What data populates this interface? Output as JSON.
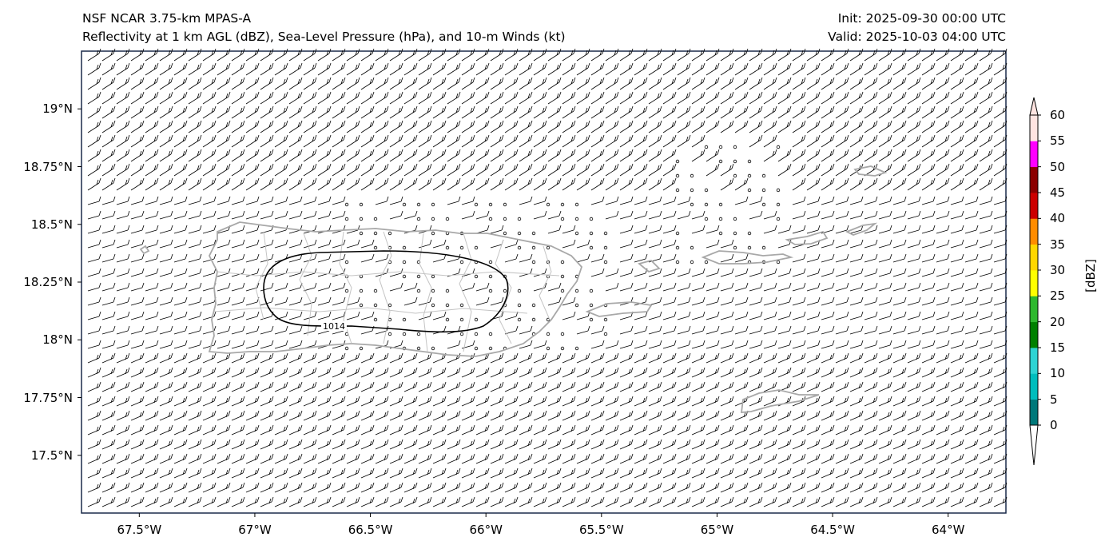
{
  "header": {
    "title_line1": "NSF NCAR 3.75-km MPAS-A",
    "title_line2": "Reflectivity at 1 km AGL (dBZ), Sea-Level Pressure (hPa), and 10-m Winds (kt)",
    "init": "Init: 2025-09-30 00:00 UTC",
    "valid": "Valid: 2025-10-03 04:00 UTC"
  },
  "map": {
    "lat_ticks": [
      "19°N",
      "18.75°N",
      "18.5°N",
      "18.25°N",
      "18°N",
      "17.75°N",
      "17.5°N"
    ],
    "lon_ticks": [
      "67.5°W",
      "67°W",
      "66.5°W",
      "66°W",
      "65.5°W",
      "65°W",
      "64.5°W",
      "64°W"
    ],
    "lat_values": [
      19.0,
      18.75,
      18.5,
      18.25,
      18.0,
      17.75,
      17.5
    ],
    "lon_values": [
      -67.5,
      -67.0,
      -66.5,
      -66.0,
      -65.5,
      -65.0,
      -64.5,
      -64.0
    ],
    "extent": {
      "lon_min": -67.75,
      "lon_max": -63.75,
      "lat_min": 17.25,
      "lat_max": 19.25
    },
    "isobar_label": "1014",
    "isobar_value_hpa": 1014,
    "coast_color": "#a8a8a8",
    "wind_color": "#000000"
  },
  "colorbar": {
    "title": "[dBZ]",
    "tick_labels": [
      "0",
      "5",
      "10",
      "15",
      "20",
      "25",
      "30",
      "35",
      "40",
      "45",
      "50",
      "55",
      "60"
    ],
    "colors": [
      "#00787a",
      "#00bdbd",
      "#2ed3d3",
      "#008000",
      "#2eb82e",
      "#ffff00",
      "#ffd700",
      "#ff8c00",
      "#cc0000",
      "#8b0000",
      "#ff00ff",
      "#ffe4e1"
    ],
    "under_color": "#ffffff",
    "over_color": "#ffe4e1"
  }
}
